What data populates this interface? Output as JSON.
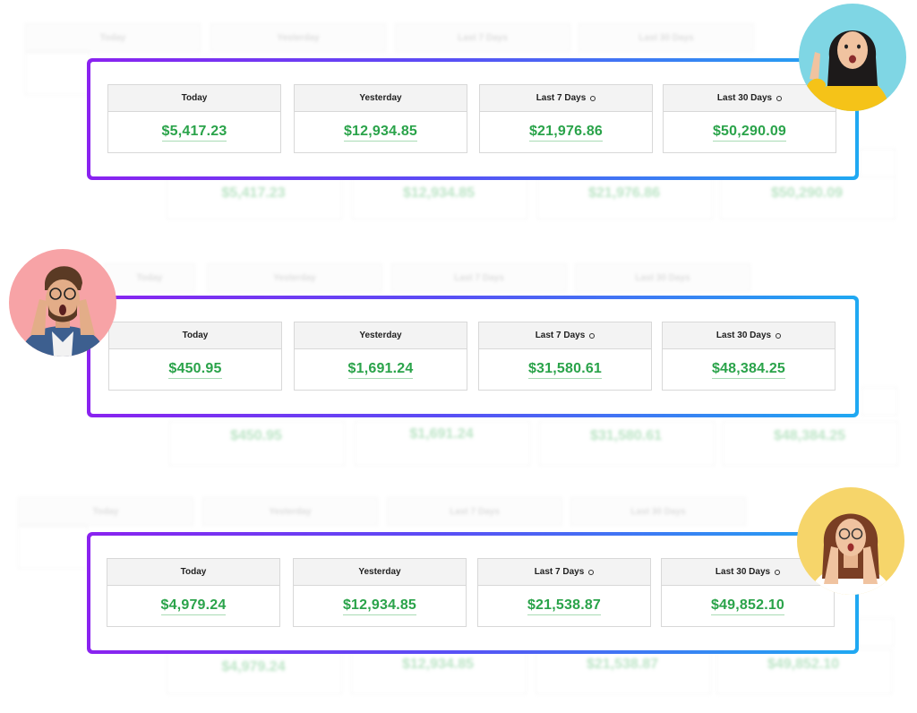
{
  "periods": [
    "Today",
    "Yesterday",
    "Last 7 Days",
    "Last 30 Days"
  ],
  "panels": [
    {
      "values": [
        "$5,417.23",
        "$12,934.85",
        "$21,976.86",
        "$50,290.09"
      ]
    },
    {
      "values": [
        "$450.95",
        "$1,691.24",
        "$31,580.61",
        "$48,384.25"
      ]
    },
    {
      "values": [
        "$4,979.24",
        "$12,934.85",
        "$21,538.87",
        "$49,852.10"
      ]
    }
  ],
  "colors": {
    "accent_start": "#8a22f0",
    "accent_end": "#1fa9f2",
    "value_green": "#2aa34a"
  },
  "avatars": [
    {
      "icon": "woman-pointing-avatar-icon",
      "bg": "#7fd6e4"
    },
    {
      "icon": "surprised-man-avatar-icon",
      "bg": "#f7a3a6"
    },
    {
      "icon": "surprised-woman-avatar-icon",
      "bg": "#f6d56a"
    }
  ]
}
